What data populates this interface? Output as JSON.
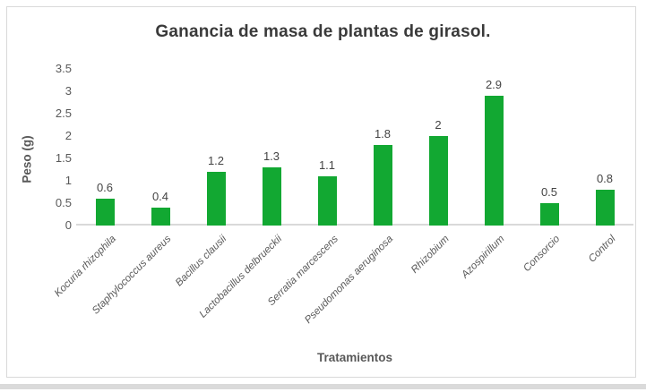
{
  "chart_data": {
    "type": "bar",
    "title": "Ganancia de masa de plantas de girasol.",
    "xlabel": "Tratamientos",
    "ylabel": "Peso (g)",
    "categories": [
      "Kocuria rhizophila",
      "Staphylococcus aureus",
      "Bacillus clausii",
      "Lactobacillus delbrueckii",
      "Serratia marcescens",
      "Pseudomonas aeruginosa",
      "Rhizobium",
      "Azospirillum",
      "Consorcio",
      "Control"
    ],
    "values": [
      0.6,
      0.4,
      1.2,
      1.3,
      1.1,
      1.8,
      2,
      2.9,
      0.5,
      0.8
    ],
    "yticks": [
      0,
      0.5,
      1,
      1.5,
      2,
      2.5,
      3,
      3.5
    ],
    "ylim": [
      0,
      3.5
    ],
    "grid": false,
    "legend": "none",
    "data_labels": true,
    "bar_color": "#12a832"
  },
  "colors": {
    "title_text": "#3a3a3a",
    "axis_text": "#595959",
    "data_label_text": "#444444",
    "axis_line": "#d9d9d9",
    "chart_border": "#d9d9d9"
  }
}
